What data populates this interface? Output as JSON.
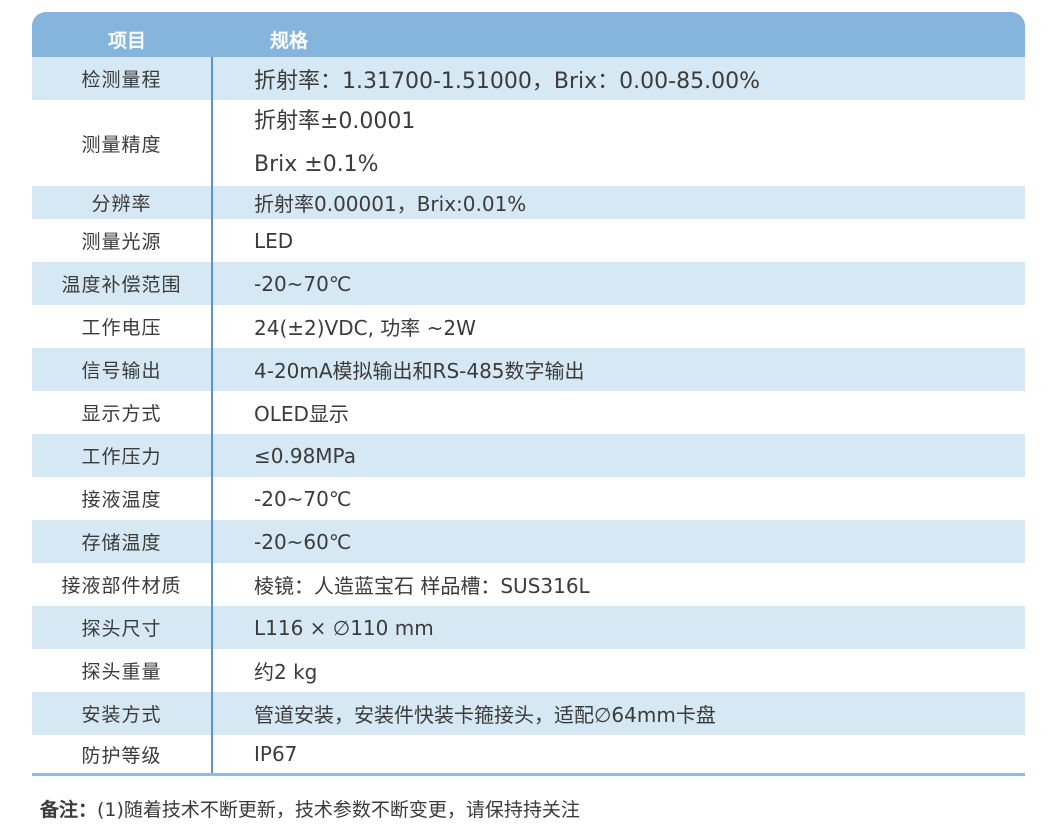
{
  "header": {
    "col1": "项目",
    "col2": "规格"
  },
  "rows": [
    {
      "label": "检测量程",
      "value": "折射率：1.31700-1.51000，Brix：0.00-85.00%"
    },
    {
      "label": "测量精度",
      "value1": "折射率±0.0001",
      "value2": "Brix ±0.1%"
    },
    {
      "label": "分辨率",
      "value": "折射率0.00001，Brix:0.01%"
    },
    {
      "label": "测量光源",
      "value": "LED"
    },
    {
      "label": "温度补偿范围",
      "value": "-20~70℃"
    },
    {
      "label": "工作电压",
      "value": "24(±2)VDC, 功率 ~2W"
    },
    {
      "label": "信号输出",
      "value": "4-20mA模拟输出和RS-485数字输出"
    },
    {
      "label": "显示方式",
      "value": "OLED显示"
    },
    {
      "label": "工作压力",
      "value": "≤0.98MPa"
    },
    {
      "label": "接液温度",
      "value": "-20~70℃"
    },
    {
      "label": "存储温度",
      "value": "-20~60℃"
    },
    {
      "label": "接液部件材质",
      "value": " 棱镜：人造蓝宝石 样品槽：SUS316L"
    },
    {
      "label": "探头尺寸",
      "value": "L116 × ∅110 mm"
    },
    {
      "label": "探头重量",
      "value": "约2 kg"
    },
    {
      "label": "安装方式",
      "value": "管道安装，安装件快装卡箍接头，适配∅64mm卡盘"
    },
    {
      "label": "防护等级",
      "value": "IP67"
    }
  ],
  "note": {
    "prefix": "备注：",
    "text": "(1)随着技术不断更新，技术参数不断变更，请保持持关注"
  },
  "colors": {
    "header": "#85b5dc",
    "stripe": "#d6e8f3",
    "divider": "#5b95c7"
  }
}
